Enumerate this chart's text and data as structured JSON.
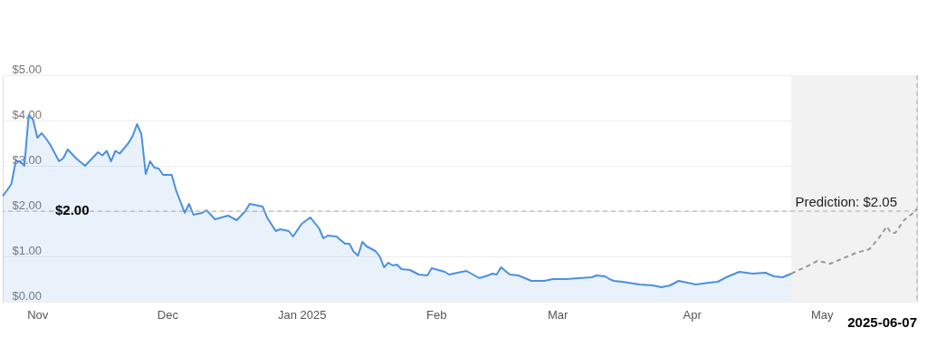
{
  "chart_data": {
    "type": "area",
    "x": [
      "2024-10-24",
      "2024-10-25",
      "2024-10-26",
      "2024-10-27",
      "2024-10-28",
      "2024-10-29",
      "2024-10-30",
      "2024-10-31",
      "2024-11-01",
      "2024-11-02",
      "2024-11-03",
      "2024-11-04",
      "2024-11-06",
      "2024-11-07",
      "2024-11-08",
      "2024-11-10",
      "2024-11-12",
      "2024-11-13",
      "2024-11-15",
      "2024-11-16",
      "2024-11-17",
      "2024-11-18",
      "2024-11-19",
      "2024-11-20",
      "2024-11-22",
      "2024-11-23",
      "2024-11-24",
      "2024-11-25",
      "2024-11-26",
      "2024-11-27",
      "2024-11-28",
      "2024-11-29",
      "2024-11-30",
      "2024-12-02",
      "2024-12-03",
      "2024-12-05",
      "2024-12-06",
      "2024-12-07",
      "2024-12-09",
      "2024-12-10",
      "2024-12-12",
      "2024-12-15",
      "2024-12-17",
      "2024-12-19",
      "2024-12-20",
      "2024-12-23",
      "2024-12-24",
      "2024-12-26",
      "2024-12-27",
      "2024-12-29",
      "2024-12-30",
      "2025-01-01",
      "2025-01-03",
      "2025-01-05",
      "2025-01-06",
      "2025-01-07",
      "2025-01-09",
      "2025-01-11",
      "2025-01-12",
      "2025-01-13",
      "2025-01-14",
      "2025-01-15",
      "2025-01-16",
      "2025-01-18",
      "2025-01-19",
      "2025-01-20",
      "2025-01-21",
      "2025-01-22",
      "2025-01-23",
      "2025-01-24",
      "2025-01-26",
      "2025-01-28",
      "2025-01-30",
      "2025-01-31",
      "2025-02-03",
      "2025-02-04",
      "2025-02-06",
      "2025-02-08",
      "2025-02-11",
      "2025-02-13",
      "2025-02-14",
      "2025-02-15",
      "2025-02-16",
      "2025-02-18",
      "2025-02-20",
      "2025-02-23",
      "2025-02-26",
      "2025-02-28",
      "2025-03-03",
      "2025-03-06",
      "2025-03-09",
      "2025-03-10",
      "2025-03-12",
      "2025-03-13",
      "2025-03-14",
      "2025-03-16",
      "2025-03-20",
      "2025-03-23",
      "2025-03-25",
      "2025-03-27",
      "2025-03-29",
      "2025-04-02",
      "2025-04-05",
      "2025-04-07",
      "2025-04-09",
      "2025-04-12",
      "2025-04-15",
      "2025-04-18",
      "2025-04-20",
      "2025-04-22",
      "2025-04-24"
    ],
    "series": [
      {
        "color": "#4a90e2",
        "values": [
          2.33,
          2.46,
          2.6,
          3.1,
          3.1,
          3.0,
          4.12,
          4.02,
          3.62,
          3.72,
          3.6,
          3.46,
          3.1,
          3.17,
          3.36,
          3.16,
          3.0,
          3.1,
          3.3,
          3.23,
          3.33,
          3.1,
          3.33,
          3.27,
          3.5,
          3.66,
          3.92,
          3.7,
          2.82,
          3.1,
          2.96,
          2.94,
          2.8,
          2.8,
          2.46,
          1.96,
          2.16,
          1.92,
          1.96,
          2.02,
          1.82,
          1.9,
          1.8,
          2.0,
          2.16,
          2.1,
          1.86,
          1.56,
          1.6,
          1.56,
          1.44,
          1.72,
          1.86,
          1.62,
          1.4,
          1.46,
          1.44,
          1.28,
          1.28,
          1.1,
          1.02,
          1.32,
          1.22,
          1.12,
          1.0,
          0.76,
          0.86,
          0.8,
          0.82,
          0.72,
          0.7,
          0.6,
          0.58,
          0.74,
          0.66,
          0.6,
          0.64,
          0.68,
          0.52,
          0.58,
          0.62,
          0.6,
          0.76,
          0.6,
          0.58,
          0.46,
          0.46,
          0.5,
          0.5,
          0.52,
          0.54,
          0.58,
          0.56,
          0.5,
          0.46,
          0.44,
          0.38,
          0.36,
          0.32,
          0.36,
          0.46,
          0.38,
          0.42,
          0.44,
          0.54,
          0.66,
          0.62,
          0.64,
          0.56,
          0.54,
          0.62
        ]
      },
      {
        "type": "line",
        "line_style": "dashed",
        "color": "#999999",
        "x": [
          "2025-04-24",
          "2025-04-28",
          "2025-04-30",
          "2025-05-03",
          "2025-05-05",
          "2025-05-09",
          "2025-05-12",
          "2025-05-14",
          "2025-05-16",
          "2025-05-17",
          "2025-05-18",
          "2025-05-20",
          "2025-05-22",
          "2025-05-23"
        ],
        "values": [
          0.62,
          0.8,
          0.9,
          0.84,
          0.92,
          1.08,
          1.16,
          1.38,
          1.66,
          1.52,
          1.52,
          1.8,
          1.95,
          2.05
        ]
      }
    ],
    "xlim": [
      "2024-10-24",
      "2025-05-23"
    ],
    "xticks": [
      {
        "value": "2024-11-01",
        "label": "Nov"
      },
      {
        "value": "2024-12-01",
        "label": "Dec"
      },
      {
        "value": "2025-01-01",
        "label": "Jan 2025"
      },
      {
        "value": "2025-02-01",
        "label": "Feb"
      },
      {
        "value": "2025-03-01",
        "label": "Mar"
      },
      {
        "value": "2025-04-01",
        "label": "Apr"
      },
      {
        "value": "2025-05-01",
        "label": "May"
      }
    ],
    "ylim": [
      0,
      5
    ],
    "yticks": [
      {
        "value": 0,
        "label": "$0.00"
      },
      {
        "value": 1,
        "label": "$1.00"
      },
      {
        "value": 2,
        "label": "$2.00"
      },
      {
        "value": 3,
        "label": "$3.00"
      },
      {
        "value": 4,
        "label": "$4.00"
      },
      {
        "value": 5,
        "label": "$5.00"
      }
    ],
    "grid": "y",
    "marker": "none",
    "ref_lines": [
      {
        "axis": "y",
        "value": 2,
        "label": "$2.00",
        "line_style": "dashed",
        "color": "#aaaaaa"
      },
      {
        "axis": "x",
        "value": "2025-05-23",
        "line_style": "dashed",
        "color": "#aaaaaa"
      }
    ],
    "bands": [
      {
        "axis": "x",
        "from": "2025-04-24",
        "to": "2025-05-23",
        "color": "#f2f2f2"
      }
    ],
    "annotations": [
      {
        "text": "Prediction: $2.05",
        "x": "2025-05-23",
        "y": 2.05
      },
      "2025-06-07"
    ]
  }
}
